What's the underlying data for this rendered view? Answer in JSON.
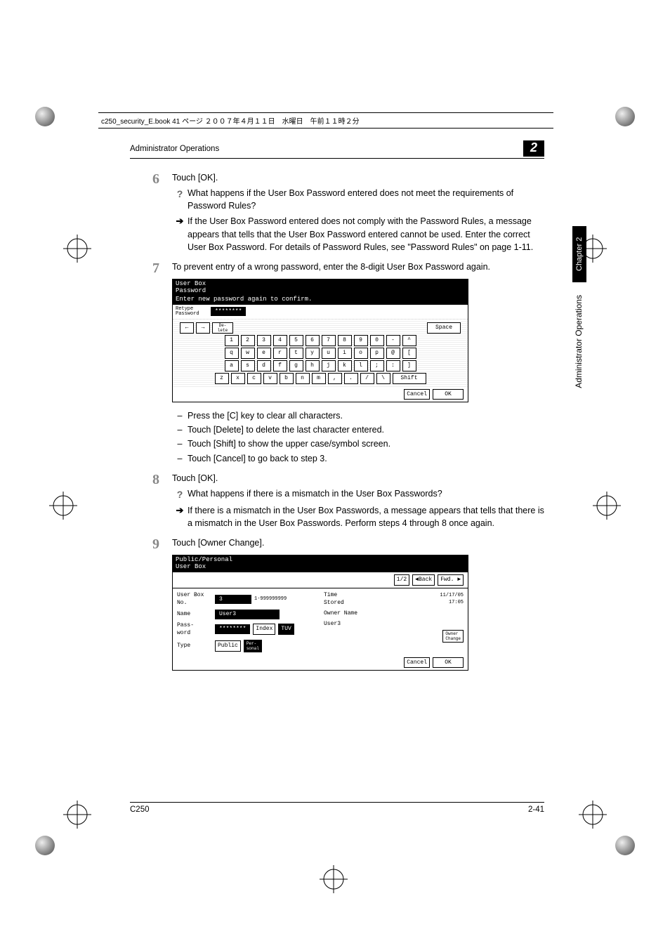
{
  "header_strip": "c250_security_E.book  41 ページ  ２００７年４月１１日　水曜日　午前１１時２分",
  "section_title": "Administrator Operations",
  "chapter_number": "2",
  "side_tab": "Chapter 2",
  "side_label": "Administrator Operations",
  "steps": {
    "s6": {
      "num": "6",
      "text": "Touch [OK].",
      "q": "What happens if the User Box Password entered does not meet the requirements of Password Rules?",
      "a": "If the User Box Password entered does not comply with the Password Rules, a message appears that tells that the User Box Password entered cannot be used. Enter the correct User Box Password. For details of Password Rules, see \"Password Rules\" on page 1-11."
    },
    "s7": {
      "num": "7",
      "text": "To prevent entry of a wrong password, enter the 8-digit User Box Password again.",
      "dashes": [
        "Press the [C] key to clear all characters.",
        "Touch [Delete] to delete the last character entered.",
        "Touch [Shift] to show the upper case/symbol screen.",
        "Touch [Cancel] to go back to step 3."
      ]
    },
    "s8": {
      "num": "8",
      "text": "Touch [OK].",
      "q": "What happens if there is a mismatch in the User Box Passwords?",
      "a": "If there is a mismatch in the User Box Passwords, a message appears that tells that there is a mismatch in the User Box Passwords. Perform steps 4 through 8 once again."
    },
    "s9": {
      "num": "9",
      "text": "Touch [Owner Change]."
    }
  },
  "screenshot1": {
    "title1": "User Box",
    "title2": "Password",
    "prompt": "Enter new password again to confirm.",
    "field_label": "Retype\nPassword",
    "field_value": "********",
    "keys_delete": "De-\nlete",
    "keys_space": "Space",
    "row_nums": [
      "1",
      "2",
      "3",
      "4",
      "5",
      "6",
      "7",
      "8",
      "9",
      "0",
      "-",
      "^"
    ],
    "row_q": [
      "q",
      "w",
      "e",
      "r",
      "t",
      "y",
      "u",
      "i",
      "o",
      "p",
      "@",
      "["
    ],
    "row_a": [
      "a",
      "s",
      "d",
      "f",
      "g",
      "h",
      "j",
      "k",
      "l",
      ";",
      ":",
      "]"
    ],
    "row_z": [
      "z",
      "x",
      "c",
      "v",
      "b",
      "n",
      "m",
      ",",
      ".",
      "/",
      "\\"
    ],
    "shift": "Shift",
    "cancel": "Cancel",
    "ok": "OK"
  },
  "screenshot2": {
    "title": "Public/Personal\nUser Box",
    "page": "1/2",
    "back": "◄Back",
    "fwd": "Fwd. ►",
    "left": {
      "userbox_no_label": "User Box\nNo.",
      "userbox_no_value": "3",
      "userbox_no_range": "1-999999999",
      "name_label": "Name",
      "name_value": "User3",
      "pass_label": "Pass-\nword",
      "pass_value": "********",
      "index": "Index",
      "tuv": "TUV",
      "type_label": "Type",
      "type_public": "Public",
      "type_personal": "Per-\nsonal"
    },
    "right": {
      "time_label": "Time\nStored",
      "time_value": "11/17/05\n17:05",
      "owner_label": "Owner Name",
      "owner_value": "User3",
      "owner_change": "Owner\nChange"
    },
    "cancel": "Cancel",
    "ok": "OK"
  },
  "footer_left": "C250",
  "footer_right": "2-41"
}
